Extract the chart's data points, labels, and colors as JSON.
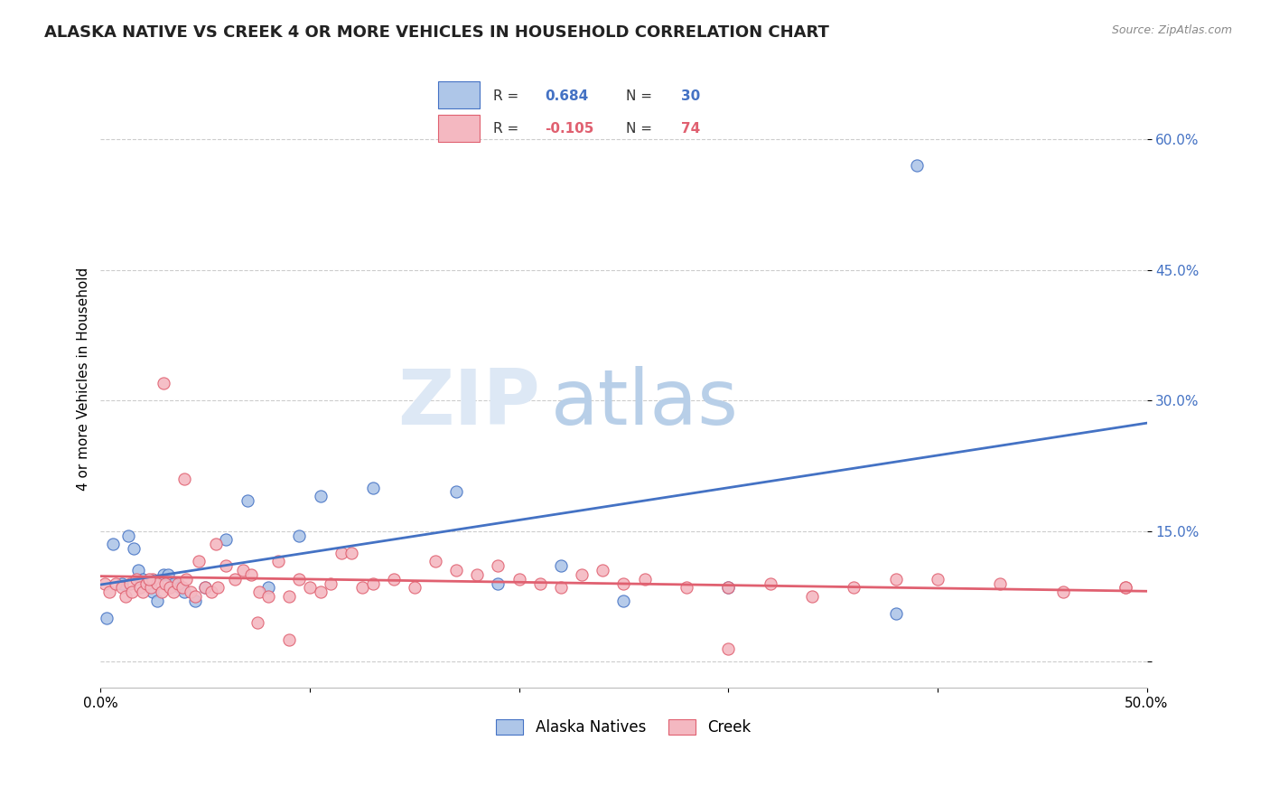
{
  "title": "ALASKA NATIVE VS CREEK 4 OR MORE VEHICLES IN HOUSEHOLD CORRELATION CHART",
  "source": "Source: ZipAtlas.com",
  "ylabel": "4 or more Vehicles in Household",
  "xlim": [
    0.0,
    50.0
  ],
  "ylim": [
    -3.0,
    68.0
  ],
  "yticks": [
    0.0,
    15.0,
    30.0,
    45.0,
    60.0
  ],
  "ytick_labels": [
    "",
    "15.0%",
    "30.0%",
    "45.0%",
    "60.0%"
  ],
  "xtick_labels": [
    "0.0%",
    "",
    "",
    "",
    "",
    "50.0%"
  ],
  "alaska_R": 0.684,
  "alaska_N": 30,
  "creek_R": -0.105,
  "creek_N": 74,
  "alaska_color": "#aec6e8",
  "creek_color": "#f4b8c1",
  "alaska_line_color": "#4472c4",
  "creek_line_color": "#e06070",
  "alaska_x": [
    0.3,
    0.6,
    1.0,
    1.3,
    1.6,
    1.8,
    2.0,
    2.3,
    2.5,
    2.7,
    3.0,
    3.2,
    3.5,
    3.8,
    4.0,
    4.5,
    5.0,
    6.0,
    7.0,
    8.0,
    9.5,
    10.5,
    13.0,
    17.0,
    19.0,
    22.0,
    25.0,
    30.0,
    38.0,
    39.0
  ],
  "alaska_y": [
    5.0,
    13.5,
    9.0,
    14.5,
    13.0,
    10.5,
    9.5,
    9.0,
    8.0,
    7.0,
    10.0,
    10.0,
    9.0,
    8.5,
    8.0,
    7.0,
    8.5,
    14.0,
    18.5,
    8.5,
    14.5,
    19.0,
    20.0,
    19.5,
    9.0,
    11.0,
    7.0,
    8.5,
    5.5,
    57.0
  ],
  "creek_x": [
    0.2,
    0.4,
    0.7,
    1.0,
    1.2,
    1.4,
    1.5,
    1.7,
    1.9,
    2.0,
    2.2,
    2.4,
    2.5,
    2.7,
    2.9,
    3.1,
    3.3,
    3.5,
    3.7,
    3.9,
    4.1,
    4.3,
    4.5,
    4.7,
    5.0,
    5.3,
    5.6,
    6.0,
    6.4,
    6.8,
    7.2,
    7.6,
    8.0,
    8.5,
    9.0,
    9.5,
    10.0,
    10.5,
    11.0,
    11.5,
    12.0,
    12.5,
    13.0,
    14.0,
    15.0,
    16.0,
    17.0,
    18.0,
    19.0,
    20.0,
    21.0,
    22.0,
    23.0,
    24.0,
    25.0,
    26.0,
    28.0,
    30.0,
    32.0,
    34.0,
    36.0,
    38.0,
    40.0,
    43.0,
    46.0,
    49.0,
    3.0,
    4.0,
    5.5,
    7.5,
    9.0,
    2.3,
    30.0,
    49.0
  ],
  "creek_y": [
    9.0,
    8.0,
    9.0,
    8.5,
    7.5,
    9.0,
    8.0,
    9.5,
    8.5,
    8.0,
    9.0,
    8.5,
    9.5,
    9.0,
    8.0,
    9.0,
    8.5,
    8.0,
    9.0,
    8.5,
    9.5,
    8.0,
    7.5,
    11.5,
    8.5,
    8.0,
    8.5,
    11.0,
    9.5,
    10.5,
    10.0,
    8.0,
    7.5,
    11.5,
    7.5,
    9.5,
    8.5,
    8.0,
    9.0,
    12.5,
    12.5,
    8.5,
    9.0,
    9.5,
    8.5,
    11.5,
    10.5,
    10.0,
    11.0,
    9.5,
    9.0,
    8.5,
    10.0,
    10.5,
    9.0,
    9.5,
    8.5,
    8.5,
    9.0,
    7.5,
    8.5,
    9.5,
    9.5,
    9.0,
    8.0,
    8.5,
    32.0,
    21.0,
    13.5,
    4.5,
    2.5,
    9.5,
    1.5,
    8.5
  ],
  "watermark_ZIP": "ZIP",
  "watermark_atlas": "atlas",
  "watermark_color_ZIP": "#dde8f5",
  "watermark_color_atlas": "#b8cfe8",
  "background_color": "#ffffff",
  "grid_color": "#cccccc",
  "title_fontsize": 13,
  "axis_label_fontsize": 11,
  "tick_fontsize": 11,
  "legend_fontsize": 12
}
